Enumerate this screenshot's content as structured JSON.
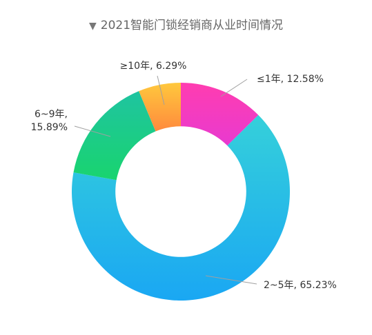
{
  "title": "2021智能门锁经销商从业时间情况",
  "title_icon": "triangle-down-icon",
  "chart_data": {
    "type": "pie",
    "title": "2021智能门锁经销商从业时间情况",
    "categories": [
      "≤1年",
      "2~5年",
      "6~9年",
      "≥10年"
    ],
    "values": [
      12.58,
      65.23,
      15.89,
      6.29
    ],
    "unit": "%",
    "labels": [
      [
        "≤1年, 12.58%"
      ],
      [
        "2~5年, 65.23%"
      ],
      [
        "6~9年,",
        "15.89%"
      ],
      [
        "≥10年, 6.29%"
      ]
    ],
    "colors": [
      [
        "#ff3db0",
        "#e83ad0"
      ],
      [
        "#35d0da",
        "#1aa7f3"
      ],
      [
        "#1fc4a0",
        "#19d46f"
      ],
      [
        "#ffc83d",
        "#ff8a3d"
      ]
    ],
    "inner_radius_ratio": 0.6
  }
}
